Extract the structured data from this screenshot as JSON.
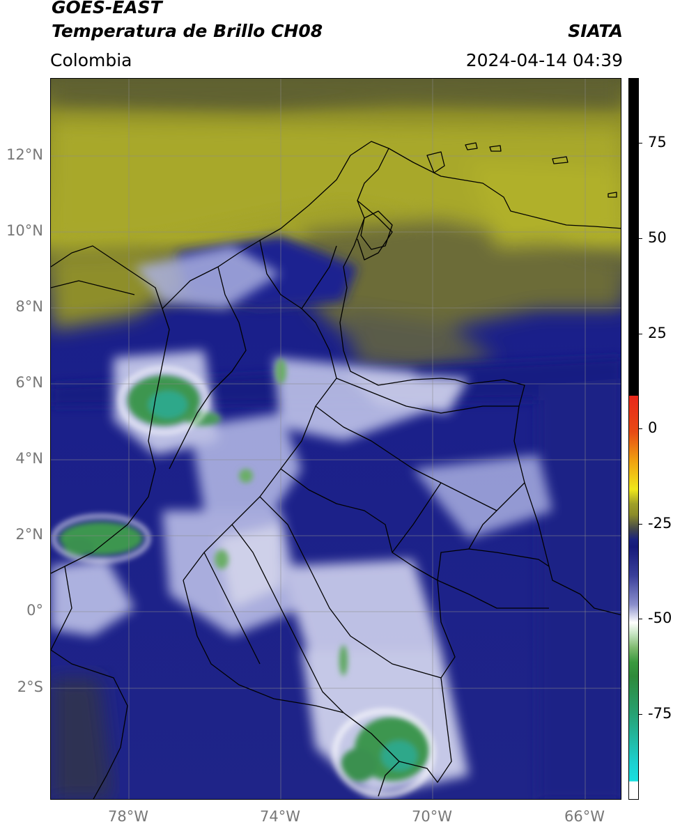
{
  "header": {
    "satellite": "GOES-EAST",
    "product": "Temperatura de Brillo CH08",
    "region": "Colombia",
    "org": "SIATA",
    "timestamp": "2024-04-14 04:39"
  },
  "map": {
    "lat_labels": [
      "12°N",
      "10°N",
      "8°N",
      "6°N",
      "4°N",
      "2°N",
      "0°",
      "2°S"
    ],
    "lon_labels": [
      "78°W",
      "74°W",
      "70°W",
      "66°W"
    ],
    "colors": {
      "dry_air": "#9a9a28",
      "mid": "#5b5d2f",
      "moist": "#1a1f8a",
      "cold_cloud": "#cfd2ef",
      "coldest": "#3a9a52"
    }
  },
  "colorbar": {
    "labels": [
      "75",
      "50",
      "25",
      "0",
      "-25",
      "-50",
      "-75"
    ],
    "colors": {
      "top": "#000000",
      "red": "#e8271b",
      "yellow": "#f0e81a",
      "olive": "#8c8c28",
      "navy": "#161a7a",
      "white": "#ffffff",
      "green": "#2e8a3a",
      "cyan": "#18d8d8"
    }
  }
}
